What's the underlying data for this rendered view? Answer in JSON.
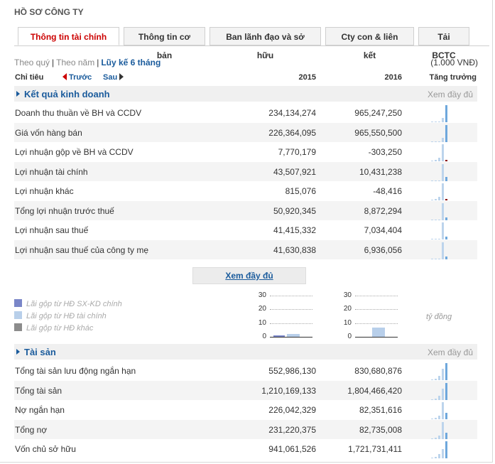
{
  "page_title": "HỒ SƠ CÔNG TY",
  "tabs": [
    {
      "label": "Thông tin tài chính",
      "active": true
    },
    {
      "label": "Thông tin cơ bản",
      "active": false
    },
    {
      "label": "Ban lãnh đạo và sở hữu",
      "active": false
    },
    {
      "label": "Cty con & liên kết",
      "active": false
    },
    {
      "label": "Tải BCTC",
      "active": false
    }
  ],
  "period_filter": {
    "by_quarter": "Theo quý",
    "separator": "|",
    "by_year": "Theo năm",
    "cumulative": "Lũy kế 6 tháng"
  },
  "unit": "(1.000 VNĐ)",
  "table_header": {
    "indicator": "Chỉ tiêu",
    "prev": "Trước",
    "next": "Sau",
    "year1": "2015",
    "year2": "2016",
    "growth": "Tăng trưởng"
  },
  "sections": [
    {
      "title": "Kết quả kinh doanh",
      "see_all": "Xem đầy đủ",
      "rows": [
        {
          "label": "Doanh thu thuần về BH và CCDV",
          "v2015": "234,134,274",
          "v2016": "965,247,250",
          "spark": [
            0.04,
            0.04,
            0.06,
            0.24,
            1.0
          ]
        },
        {
          "label": "Giá vốn hàng bán",
          "v2015": "226,364,095",
          "v2016": "965,550,500",
          "spark": [
            0.04,
            0.04,
            0.06,
            0.23,
            1.0
          ]
        },
        {
          "label": "Lợi nhuận gộp về BH và CCDV",
          "v2015": "7,770,179",
          "v2016": "-303,250",
          "spark": [
            0.05,
            0.1,
            0.2,
            1.0,
            -0.04
          ]
        },
        {
          "label": "Lợi nhuận tài chính",
          "v2015": "43,507,921",
          "v2016": "10,431,238",
          "spark": [
            0.02,
            0.03,
            0.05,
            1.0,
            0.24
          ]
        },
        {
          "label": "Lợi nhuận khác",
          "v2015": "815,076",
          "v2016": "-48,416",
          "spark": [
            0.05,
            0.1,
            0.2,
            1.0,
            -0.06
          ]
        },
        {
          "label": "Tổng lợi nhuận trước thuế",
          "v2015": "50,920,345",
          "v2016": "8,872,294",
          "spark": [
            0.02,
            0.03,
            0.05,
            1.0,
            0.17
          ]
        },
        {
          "label": "Lợi nhuận sau thuế",
          "v2015": "41,415,332",
          "v2016": "7,034,404",
          "spark": [
            0.02,
            0.03,
            0.05,
            1.0,
            0.17
          ]
        },
        {
          "label": "Lợi nhuận sau thuế của công ty mẹ",
          "v2015": "41,630,838",
          "v2016": "6,936,056",
          "spark": [
            0.02,
            0.03,
            0.05,
            1.0,
            0.17
          ]
        }
      ]
    },
    {
      "title": "Tài sản",
      "see_all": "Xem đầy đủ",
      "rows": [
        {
          "label": "Tổng tài sản lưu động ngắn hạn",
          "v2015": "552,986,130",
          "v2016": "830,680,876",
          "spark": [
            0.05,
            0.1,
            0.25,
            0.66,
            1.0
          ]
        },
        {
          "label": "Tổng tài sản",
          "v2015": "1,210,169,133",
          "v2016": "1,804,466,420",
          "spark": [
            0.05,
            0.1,
            0.25,
            0.67,
            1.0
          ]
        },
        {
          "label": "Nợ ngắn hạn",
          "v2015": "226,042,329",
          "v2016": "82,351,616",
          "spark": [
            0.05,
            0.1,
            0.2,
            1.0,
            0.36
          ]
        },
        {
          "label": "Tổng nợ",
          "v2015": "231,220,375",
          "v2016": "82,735,008",
          "spark": [
            0.05,
            0.1,
            0.2,
            1.0,
            0.36
          ]
        },
        {
          "label": "Vốn chủ sở hữu",
          "v2015": "941,061,526",
          "v2016": "1,721,731,411",
          "spark": [
            0.05,
            0.1,
            0.25,
            0.55,
            1.0
          ]
        }
      ]
    }
  ],
  "see_all_button": "Xem đầy đủ",
  "legend": [
    {
      "label": "Lãi gộp từ HĐ SX-KD chính",
      "color": "#7a86c8"
    },
    {
      "label": "Lãi gộp từ HĐ tài chính",
      "color": "#b8cfea"
    },
    {
      "label": "Lãi gộp từ HĐ khác",
      "color": "#8c8c8c"
    }
  ],
  "mini_charts_unit": "tỷ đồng",
  "chart_data": [
    {
      "type": "bar",
      "ylim": [
        0,
        30
      ],
      "yticks": [
        "30",
        "20",
        "10",
        "0"
      ],
      "series": [
        {
          "values": [
            0.8,
            2.2
          ]
        }
      ]
    },
    {
      "type": "bar",
      "ylim": [
        0,
        30
      ],
      "yticks": [
        "30",
        "20",
        "10",
        "0"
      ],
      "series": [
        {
          "values": [
            0,
            6.5
          ]
        }
      ]
    }
  ],
  "colors": {
    "accent": "#1a5b9c",
    "active_tab": "#cc0000",
    "spark": "#6fa8dc",
    "negative": "#8b0000"
  }
}
